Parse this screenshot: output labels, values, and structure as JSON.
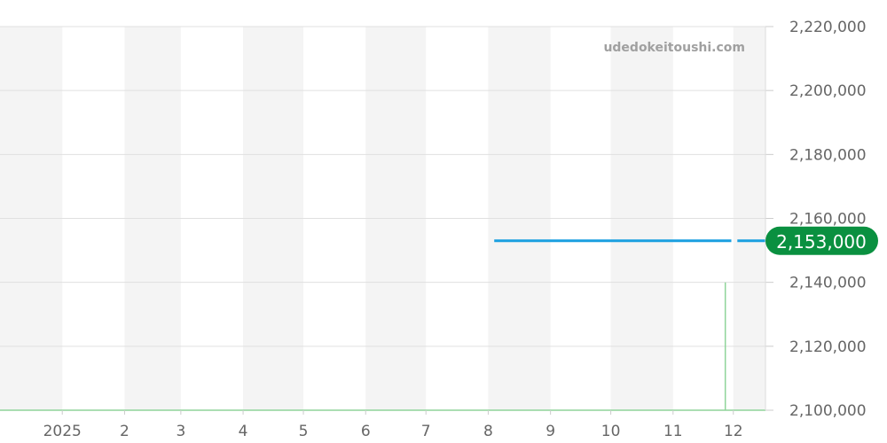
{
  "chart_data": {
    "type": "line",
    "watermark": "udedokeitoushi.com",
    "x_tick_labels": [
      "2025",
      "2",
      "3",
      "4",
      "5",
      "6",
      "7",
      "8",
      "9",
      "10",
      "11",
      "12"
    ],
    "x_ticks": [
      "2025-01-01",
      "2025-02-01",
      "2025-03-01",
      "2025-04-01",
      "2025-05-01",
      "2025-06-01",
      "2025-07-01",
      "2025-08-01",
      "2025-09-01",
      "2025-10-01",
      "2025-11-01",
      "2025-12-01"
    ],
    "xlim": [
      "2024-12-01",
      "2025-12-17"
    ],
    "ylim": [
      2100000,
      2220000
    ],
    "y_ticks": [
      2100000,
      2120000,
      2140000,
      2160000,
      2180000,
      2200000,
      2220000
    ],
    "y_tick_labels": [
      "2,100,000",
      "2,120,000",
      "2,140,000",
      "2,160,000",
      "2,180,000",
      "2,200,000",
      "2,220,000"
    ],
    "grid": true,
    "alternating_month_bands": true,
    "series": [
      {
        "color": "#1a9fe0",
        "segments": [
          [
            [
              "2025-08-04",
              2153000
            ],
            [
              "2025-11-30",
              2153000
            ]
          ],
          [
            [
              "2025-12-03",
              2153000
            ],
            [
              "2025-12-17",
              2153000
            ]
          ]
        ]
      },
      {
        "color": "#8fd49a",
        "segments": [
          [
            [
              "2024-12-01",
              2100000
            ],
            [
              "2025-11-27",
              2100000
            ],
            [
              "2025-11-27",
              2140000
            ],
            [
              "2025-11-27",
              2100000
            ],
            [
              "2025-12-17",
              2100000
            ]
          ]
        ]
      }
    ],
    "current_value_label": "2,153,000",
    "current_value": 2153000,
    "badge_color": "#0a9040"
  }
}
